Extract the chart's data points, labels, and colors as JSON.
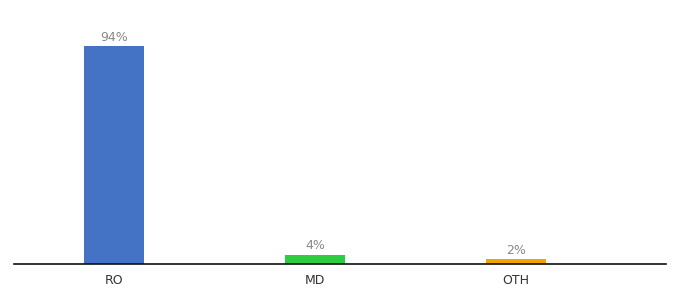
{
  "categories": [
    "RO",
    "MD",
    "OTH"
  ],
  "values": [
    94,
    4,
    2
  ],
  "bar_colors": [
    "#4472c4",
    "#2ecc40",
    "#f0a500"
  ],
  "background_color": "#ffffff",
  "ylim": [
    0,
    105
  ],
  "bar_width": 0.6,
  "tick_fontsize": 9,
  "label_fontsize": 9,
  "label_color": "#888888",
  "axis_color": "#333333",
  "bar_positions": [
    1,
    3,
    5
  ],
  "xlim": [
    0,
    6.5
  ]
}
